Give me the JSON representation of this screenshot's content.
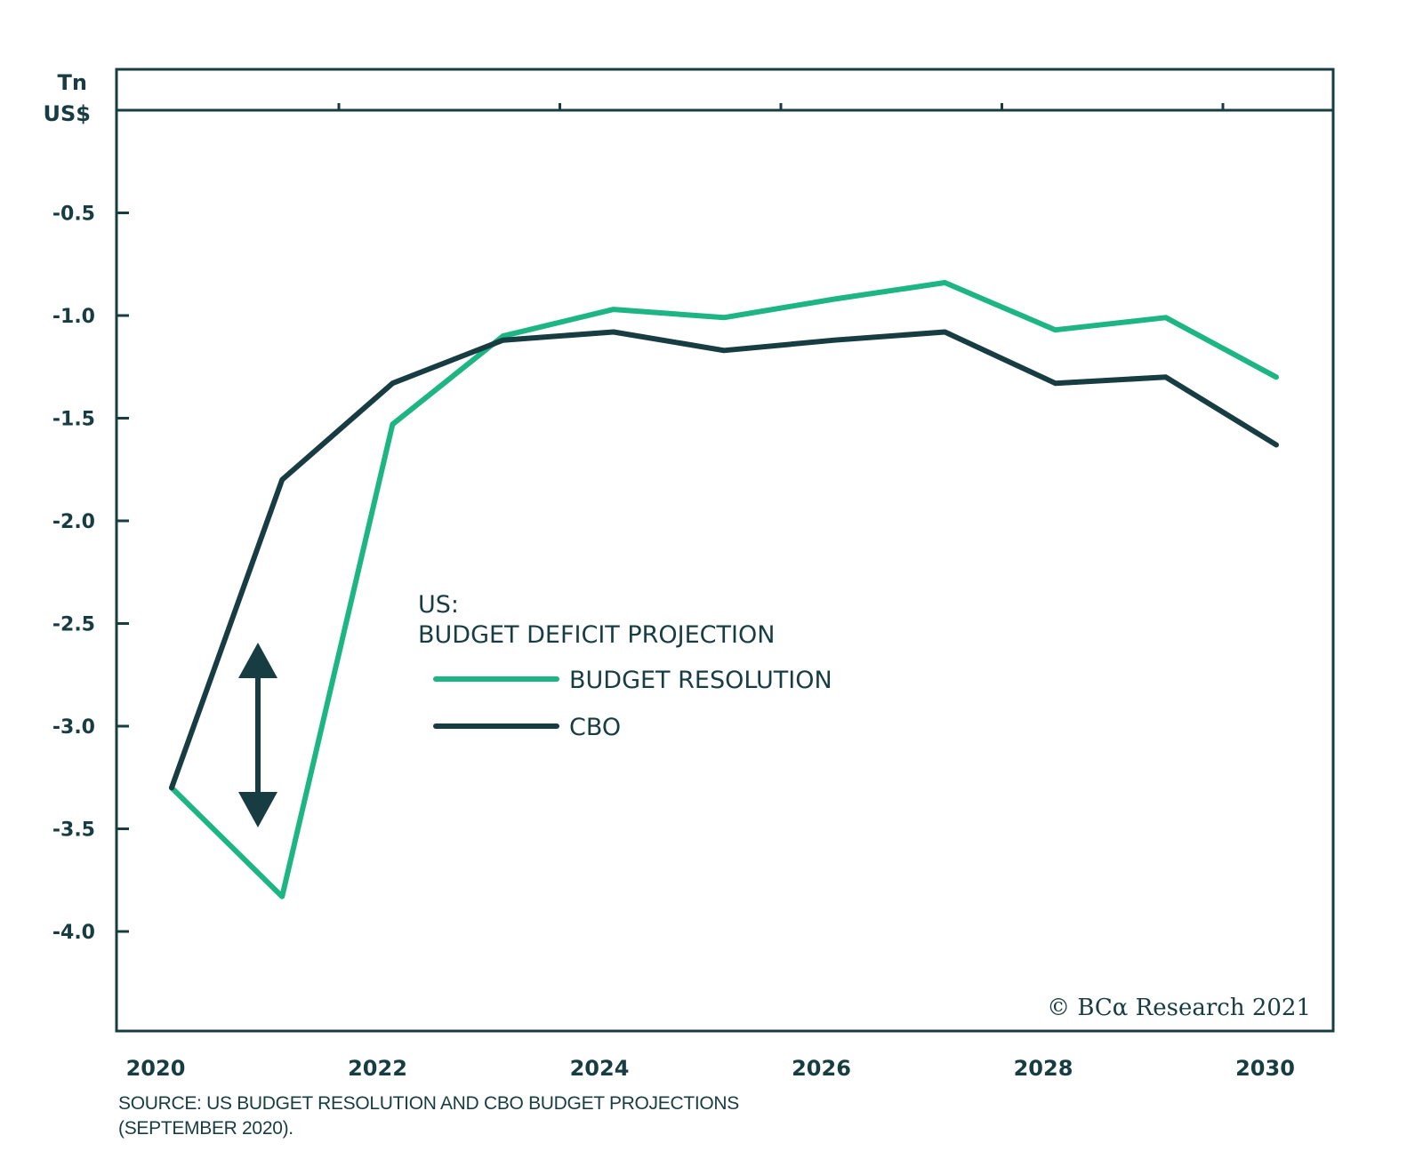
{
  "chart_data": {
    "type": "line",
    "title": "US: BUDGET DEFICIT PROJECTION",
    "title_line1": "US:",
    "title_line2": "BUDGET DEFICIT PROJECTION",
    "ylabel_line1": "Tn",
    "ylabel_line2": "US$",
    "xlabel": "",
    "x": [
      2020,
      2021,
      2022,
      2023,
      2024,
      2025,
      2026,
      2027,
      2028,
      2029,
      2030
    ],
    "xticks": [
      "2020",
      "2022",
      "2024",
      "2026",
      "2028",
      "2030"
    ],
    "yticks": [
      "-0.5",
      "-1.0",
      "-1.5",
      "-2.0",
      "-2.5",
      "-3.0",
      "-3.5",
      "-4.0"
    ],
    "ytick_values": [
      -0.5,
      -1.0,
      -1.5,
      -2.0,
      -2.5,
      -3.0,
      -3.5,
      -4.0
    ],
    "ylim": [
      -4.5,
      0.2
    ],
    "grid": false,
    "legend_position": "center",
    "series": [
      {
        "name": "BUDGET RESOLUTION",
        "color": "#1db584",
        "values": [
          -3.3,
          -3.83,
          -1.53,
          -1.1,
          -0.97,
          -1.01,
          -0.92,
          -0.84,
          -1.07,
          -1.01,
          -1.3
        ]
      },
      {
        "name": "CBO",
        "color": "#173d42",
        "values": [
          -3.3,
          -1.8,
          -1.33,
          -1.12,
          -1.08,
          -1.17,
          -1.12,
          -1.08,
          -1.33,
          -1.3,
          -1.63
        ]
      }
    ],
    "annotations": [
      {
        "type": "double-arrow",
        "x": 2020.8,
        "from": -2.6,
        "to": -3.5
      }
    ],
    "source_line1": "SOURCE: US BUDGET RESOLUTION AND CBO BUDGET PROJECTIONS",
    "source_line2": "(SEPTEMBER 2020).",
    "watermark": "© BCα Research 2021"
  },
  "colors": {
    "axis": "#173d42",
    "text": "#173d42",
    "budget_resolution": "#1db584",
    "cbo": "#173d42"
  }
}
